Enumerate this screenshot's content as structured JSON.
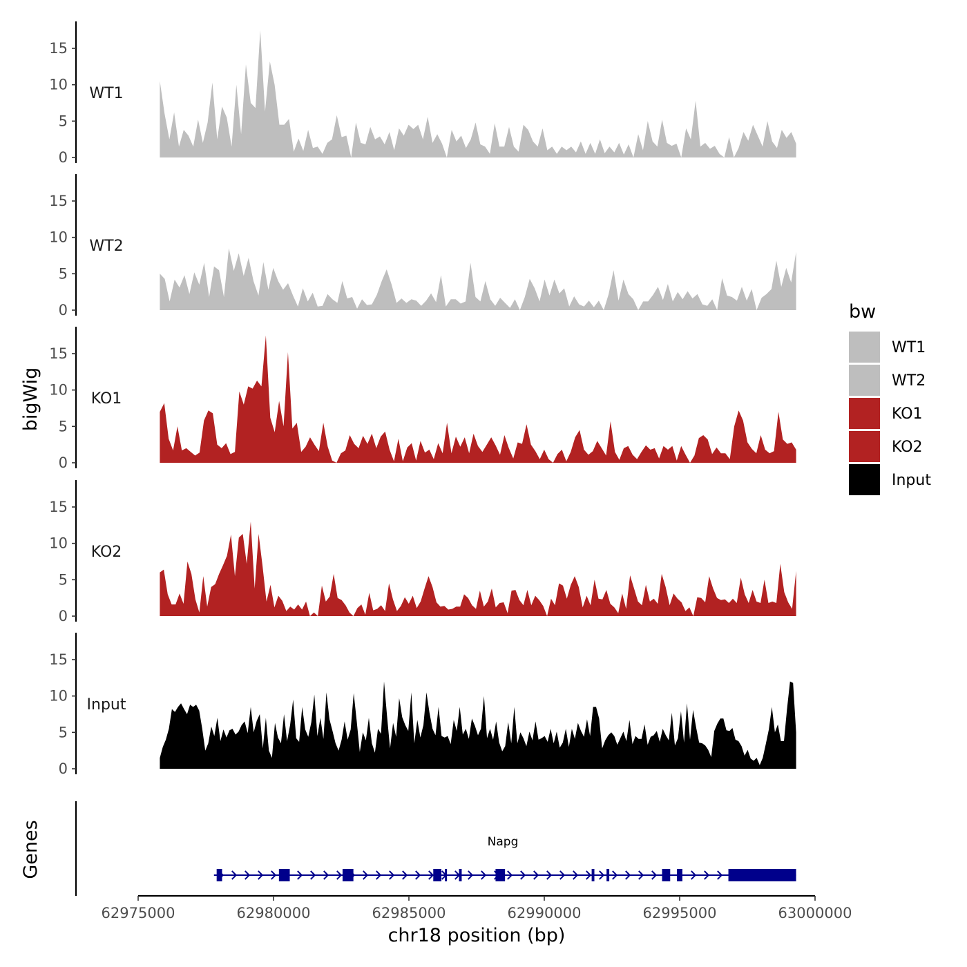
{
  "chart_data": {
    "type": "area",
    "title": "",
    "ylabel": "bigWig",
    "xlabel": "chr18 position (bp)",
    "ylim": [
      0,
      18.5
    ],
    "y_ticks": [
      0,
      5,
      10,
      15
    ],
    "xlim": [
      62975000,
      63000000
    ],
    "x_ticks": [
      62975000,
      62980000,
      62985000,
      62990000,
      62995000,
      63000000
    ],
    "x_tick_labels": [
      "62975000",
      "62980000",
      "62985000",
      "62990000",
      "62995000",
      "63000000"
    ],
    "x_start": 62975800,
    "x_end": 62999300,
    "legend": {
      "title": "bw",
      "position": "right",
      "entries": [
        {
          "name": "WT1",
          "color": "#bebebe"
        },
        {
          "name": "WT2",
          "color": "#bebebe"
        },
        {
          "name": "KO1",
          "color": "#b22222"
        },
        {
          "name": "KO2",
          "color": "#b22222"
        },
        {
          "name": "Input",
          "color": "#000000"
        }
      ]
    },
    "series": [
      {
        "name": "WT1",
        "color": "#bebebe",
        "values": [
          10.5,
          6,
          2.5,
          6.2,
          1.5,
          3.8,
          3,
          1.5,
          5.2,
          2,
          4.8,
          10.3,
          2.5,
          7,
          5.5,
          1.5,
          10,
          3.2,
          12.8,
          7.5,
          6.8,
          17.5,
          6.3,
          13.2,
          10,
          4.5,
          4.5,
          5.3,
          0.8,
          2.6,
          0.9,
          3.8,
          1.3,
          1.5,
          0.5,
          2,
          2.5,
          5.8,
          2.8,
          3,
          0,
          4.8,
          2,
          1.8,
          4.2,
          2.5,
          2.9,
          1.8,
          3.5,
          1,
          4,
          3,
          4.5,
          3.9,
          4.5,
          2.5,
          5.6,
          2,
          3.2,
          1.9,
          0,
          3.8,
          2.2,
          3,
          1.3,
          2.5,
          4.8,
          1.8,
          1.5,
          0.5,
          4.7,
          1.5,
          1.5,
          4.2,
          1.5,
          0.8,
          4.5,
          3.8,
          2.2,
          1.5,
          4,
          1,
          1.5,
          0.5,
          1.5,
          1,
          1.5,
          0.7,
          2.2,
          0.5,
          2,
          0.5,
          2.5,
          0.6,
          1.5,
          0.7,
          2,
          0.4,
          1.8,
          0,
          3.2,
          1,
          5,
          2.2,
          1.5,
          5.2,
          2,
          1.6,
          1.9,
          0,
          4,
          2.5,
          7.8,
          1.5,
          2,
          1.2,
          1.6,
          0.5,
          0,
          2.8,
          0,
          1.3,
          3.5,
          2.3,
          4.5,
          3,
          1.5,
          5,
          2.2,
          1.3,
          3.8,
          2.7,
          3.5,
          1.9
        ]
      },
      {
        "name": "WT2",
        "color": "#bebebe",
        "values": [
          5,
          4.3,
          1.2,
          4.2,
          3.1,
          4.8,
          2.2,
          5.2,
          3.5,
          6.5,
          1.8,
          6,
          5.5,
          1.8,
          8.5,
          5.4,
          7.8,
          4.7,
          7.2,
          4,
          2,
          6.6,
          2.8,
          5.8,
          4,
          2.8,
          3.7,
          2,
          0.5,
          3,
          1.2,
          2.4,
          0.5,
          0.6,
          2.2,
          1.5,
          1,
          4,
          1.6,
          1.8,
          0.2,
          1.5,
          0.7,
          0.8,
          2.1,
          4,
          5.6,
          3.5,
          1,
          1.6,
          1,
          1.5,
          1.3,
          0.6,
          1.3,
          2.3,
          1.1,
          4.8,
          0.5,
          1.5,
          1.5,
          0.9,
          1.2,
          6.5,
          1.8,
          1.2,
          4,
          1.5,
          0.6,
          1.7,
          1,
          0.3,
          1.5,
          0,
          1.8,
          4.3,
          3,
          1.2,
          4.2,
          2,
          4.2,
          2.3,
          3,
          0.5,
          1.9,
          0.8,
          0.5,
          1.3,
          0.4,
          1.3,
          0,
          2.2,
          5.5,
          1.3,
          4.2,
          2.2,
          1.5,
          0,
          1.2,
          1.2,
          2.1,
          3.2,
          1.4,
          3.6,
          1.2,
          2.5,
          1.5,
          2.6,
          1.6,
          2.2,
          0.8,
          0.6,
          1.5,
          0,
          4.4,
          2,
          1.8,
          1.3,
          3.2,
          1.3,
          2.9,
          0,
          1.7,
          2.2,
          2.9,
          6.8,
          3.2,
          5.8,
          3.8,
          8
        ]
      },
      {
        "name": "KO1",
        "color": "#b22222",
        "values": [
          7,
          8.2,
          3.3,
          1.7,
          5,
          1.7,
          2,
          1.5,
          1,
          1.4,
          5.8,
          7.2,
          6.8,
          2.5,
          2,
          2.7,
          1.2,
          1.5,
          9.8,
          8,
          10.5,
          10.2,
          11.3,
          10.5,
          17.5,
          6.2,
          4.2,
          8.5,
          5,
          15.2,
          4.7,
          5.5,
          1.5,
          2.2,
          3.5,
          2.5,
          1.6,
          5.5,
          2.2,
          0.3,
          0,
          1.3,
          1.7,
          3.8,
          2.6,
          2,
          3.7,
          2.6,
          4,
          2,
          3.6,
          4.3,
          1.8,
          0.2,
          3.3,
          0.2,
          2.1,
          2.7,
          0.3,
          3,
          1.4,
          1.8,
          0.5,
          2.7,
          1.3,
          5.5,
          1.3,
          3.6,
          2.2,
          3.5,
          1.3,
          4,
          2.3,
          1.5,
          2.5,
          3.5,
          2.4,
          1.1,
          3.8,
          2,
          0.6,
          2.8,
          2.6,
          5.3,
          2.5,
          1.6,
          0.5,
          1.8,
          0.5,
          0,
          1.2,
          1.8,
          0.2,
          1.5,
          3.5,
          4.5,
          1.8,
          1.1,
          1.6,
          3,
          2,
          1,
          5.7,
          1.5,
          0.4,
          2,
          2.3,
          1.1,
          0.5,
          1.5,
          2.4,
          1.8,
          2,
          0.6,
          2.3,
          1.8,
          2.3,
          0.3,
          2.3,
          1.1,
          0,
          1,
          3.4,
          3.8,
          3.2,
          1.2,
          2.1,
          1.3,
          1.3,
          0.5,
          5,
          7.2,
          5.8,
          2.8,
          1.9,
          1.3,
          3.8,
          1.8,
          1.3,
          1.6,
          7,
          3.2,
          2.6,
          2.8,
          1.8
        ]
      },
      {
        "name": "KO2",
        "color": "#b22222",
        "values": [
          6,
          6.4,
          3,
          1.6,
          1.6,
          3.1,
          1.7,
          7.5,
          5.8,
          2.3,
          0.5,
          5.5,
          1.3,
          4,
          4.4,
          5.8,
          7,
          8.3,
          11.2,
          5.5,
          10.8,
          11.3,
          7.2,
          13,
          3.8,
          11.3,
          6.9,
          2,
          4.3,
          1.2,
          2.8,
          2.1,
          0.7,
          1.3,
          0.9,
          1.6,
          0.9,
          2,
          0,
          0.5,
          0,
          4.2,
          2,
          2.7,
          5.8,
          2.5,
          2.2,
          1.5,
          0.5,
          0,
          1.1,
          1.6,
          0.2,
          3.2,
          0.8,
          1,
          1.5,
          0.7,
          4.5,
          2.3,
          0.7,
          1.4,
          2.6,
          1.7,
          2.8,
          1.1,
          2,
          3.8,
          5.5,
          4,
          1.9,
          1.3,
          1.4,
          0.9,
          1,
          1.3,
          1.3,
          3,
          2.5,
          1.5,
          1,
          3.5,
          1.3,
          2,
          3.8,
          1.2,
          1.8,
          1.9,
          0.4,
          3.5,
          3.6,
          2.2,
          1.5,
          3.6,
          1.5,
          2.8,
          2.2,
          1.4,
          0,
          2.4,
          1.5,
          4.5,
          4.2,
          2.4,
          4.3,
          5.5,
          4,
          1.2,
          2.8,
          1.5,
          5,
          2.4,
          2.3,
          3.6,
          1.7,
          1.2,
          0.4,
          3.1,
          1,
          5.6,
          3.8,
          2,
          1.5,
          4.3,
          2,
          2.4,
          1.7,
          5.8,
          4,
          1.5,
          3.1,
          2.4,
          1.9,
          0.7,
          1.2,
          0,
          2.6,
          2.5,
          1.9,
          5.5,
          3.8,
          2.5,
          2.2,
          2.3,
          1.8,
          2.4,
          1.8,
          5.3,
          3,
          1.8,
          3.6,
          2,
          1.8,
          5,
          1.8,
          2,
          1.8,
          7.2,
          3.3,
          1.9,
          1,
          6.2
        ]
      },
      {
        "name": "Input",
        "color": "#000000",
        "values": [
          1.5,
          3,
          4,
          5.5,
          8.2,
          7.8,
          8.5,
          9,
          8.2,
          7.5,
          8.8,
          8.5,
          8.8,
          8,
          5.5,
          2.5,
          3.5,
          5.8,
          4.5,
          7,
          3.8,
          5.4,
          4.3,
          5.3,
          5.5,
          4.7,
          5.1,
          6,
          6.5,
          4.9,
          8.5,
          5,
          6.6,
          7.5,
          2.8,
          7,
          2.5,
          1.5,
          6.3,
          4.3,
          3.5,
          7.5,
          3.8,
          6,
          9.5,
          4.2,
          3.7,
          8.5,
          5.4,
          4.4,
          6.4,
          10.2,
          4.5,
          7,
          4.1,
          10.5,
          6.8,
          5.2,
          3.5,
          2.5,
          4,
          6.5,
          4,
          5.4,
          10.4,
          6.5,
          2.3,
          5,
          3.9,
          7,
          3.5,
          2.2,
          5.5,
          4.8,
          12,
          7.2,
          2.8,
          6.3,
          4.4,
          9.7,
          7.1,
          6,
          5.2,
          10.5,
          3.5,
          6.7,
          4.3,
          6,
          10.5,
          7.7,
          5.5,
          4.6,
          8.5,
          4.5,
          4.3,
          4.5,
          3.4,
          6.7,
          5.2,
          8.5,
          4.7,
          5.5,
          4.1,
          6.9,
          5.9,
          4.6,
          5.5,
          10,
          4.2,
          5.5,
          4,
          6.5,
          3.6,
          2.4,
          3.1,
          6.4,
          3.5,
          8.5,
          3.5,
          5,
          4.2,
          3.1,
          5.1,
          3.9,
          6.5,
          4,
          4.2,
          4.5,
          3.7,
          5.5,
          3.5,
          5.1,
          2.9,
          3.6,
          5.5,
          3,
          5.5,
          4.1,
          6.3,
          5.2,
          4.4,
          6.8,
          4.5,
          8.5,
          8.5,
          6.9,
          2.8,
          3.9,
          4.6,
          5,
          4.5,
          3.3,
          4.2,
          5.1,
          3.8,
          6.7,
          3.4,
          4.5,
          4.1,
          4.1,
          6.1,
          3.3,
          4.4,
          4.6,
          5.2,
          3.7,
          5.5,
          4.6,
          3.9,
          7.7,
          3.2,
          4.2,
          7.9,
          3.6,
          9,
          4,
          8.1,
          5.7,
          3.6,
          3.5,
          3.2,
          2.6,
          1.6,
          5.2,
          6.2,
          6.9,
          6.9,
          5.3,
          5.2,
          5.6,
          4,
          3.8,
          3.1,
          1.8,
          2.6,
          1.4,
          1.1,
          1.5,
          0.5,
          1.5,
          3.4,
          5.4,
          8.5,
          5,
          6.1,
          3.8,
          3.8,
          8.2,
          12,
          11.8,
          5
        ]
      }
    ],
    "genes_track": {
      "label": "Genes",
      "gene_name": "Napg",
      "strand": "+",
      "start": 62977800,
      "end": 62999300,
      "color": "#00008b",
      "exons": [
        {
          "start": 62977900,
          "end": 62978100
        },
        {
          "start": 62980200,
          "end": 62980600
        },
        {
          "start": 62982550,
          "end": 62982950
        },
        {
          "start": 62985900,
          "end": 62986200
        },
        {
          "start": 62986330,
          "end": 62986400
        },
        {
          "start": 62986850,
          "end": 62986950
        },
        {
          "start": 62988200,
          "end": 62988550
        },
        {
          "start": 62991750,
          "end": 62991850
        },
        {
          "start": 62992300,
          "end": 62992400
        },
        {
          "start": 62994350,
          "end": 62994650
        },
        {
          "start": 62994900,
          "end": 62995100
        },
        {
          "start": 62996800,
          "end": 62999300
        }
      ]
    }
  }
}
